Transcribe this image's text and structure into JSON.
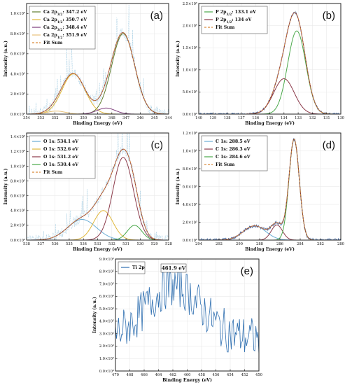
{
  "chart_data": [
    {
      "panel": "(a)",
      "type": "line",
      "xlabel": "Binding Energy (eV)",
      "ylabel": "Intensity (a.u.)",
      "xlim": [
        354,
        344
      ],
      "ylim": [
        0,
        1100000
      ],
      "x_ticks": [
        354,
        353,
        352,
        351,
        350,
        349,
        348,
        347,
        346,
        345,
        344
      ],
      "y_ticks": [
        0,
        200000,
        400000,
        600000,
        800000,
        1000000
      ],
      "y_tick_labels": [
        "0.0×10⁰",
        "2.0×10⁵",
        "4.0×10⁵",
        "6.0×10⁵",
        "8.0×10⁵",
        "1.0×10⁶"
      ],
      "legend": [
        {
          "text": "Ca 2p3/2: 347.2 eV",
          "color": "#5f7d2e",
          "style": "solid"
        },
        {
          "text": "Ca 2p1/2: 350.7 eV",
          "color": "#e0b73a",
          "style": "solid"
        },
        {
          "text": "Ca 2p3/2: 348.4 eV",
          "color": "#7d3a7a",
          "style": "solid"
        },
        {
          "text": "Ca 2p1/2: 351.9 eV",
          "color": "#e8c27a",
          "style": "solid"
        },
        {
          "text": "Fit Sum",
          "color": "#d98a3a",
          "style": "dashed"
        }
      ],
      "peaks": [
        {
          "center": 347.2,
          "height": 800000,
          "fwhm": 1.9,
          "color": "#5f7d2e"
        },
        {
          "center": 350.7,
          "height": 400000,
          "fwhm": 1.9,
          "color": "#e0b73a"
        },
        {
          "center": 348.4,
          "height": 60000,
          "fwhm": 1.5,
          "color": "#7d3a7a"
        },
        {
          "center": 351.9,
          "height": 30000,
          "fwhm": 1.5,
          "color": "#e8c27a"
        }
      ],
      "raw": {
        "color": "#9ecae1",
        "noise": 0.05,
        "spikes": true
      },
      "fit_color": "#8b3a3a"
    },
    {
      "panel": "(b)",
      "type": "line",
      "xlabel": "Binding Energy (eV)",
      "ylabel": "Intensity (a.u.)",
      "xlim": [
        140,
        130
      ],
      "ylim": [
        0,
        2500000
      ],
      "x_ticks": [
        140,
        139,
        138,
        137,
        136,
        135,
        134,
        133,
        132,
        131,
        130
      ],
      "y_ticks": [
        0,
        500000,
        1000000,
        1500000,
        2000000,
        2500000
      ],
      "y_tick_labels": [
        "0.0×10⁰",
        "5.0×10⁵",
        "1.0×10⁶",
        "1.5×10⁶",
        "2.0×10⁶",
        "2.5×10⁶"
      ],
      "legend": [
        {
          "text": "P 2p3/2: 133.1 eV",
          "color": "#4aa84a",
          "style": "solid"
        },
        {
          "text": "P 2p1/2: 134 eV",
          "color": "#8b3a4a",
          "style": "solid"
        },
        {
          "text": "Fit Sum",
          "color": "#d98a3a",
          "style": "dashed"
        }
      ],
      "peaks": [
        {
          "center": 133.1,
          "height": 1880000,
          "fwhm": 1.5,
          "color": "#4aa84a"
        },
        {
          "center": 134.0,
          "height": 800000,
          "fwhm": 1.7,
          "color": "#8b3a4a"
        }
      ],
      "raw": {
        "color": "#4a6fa5",
        "noise": 0.01,
        "spikes": false
      },
      "fit_color": "#8b3a3a"
    },
    {
      "panel": "(c)",
      "type": "line",
      "xlabel": "Binding Energy (eV)",
      "ylabel": "Intensity (a.u.)",
      "xlim": [
        538,
        528
      ],
      "ylim": [
        0,
        1450000
      ],
      "x_ticks": [
        538,
        537,
        536,
        535,
        534,
        533,
        532,
        531,
        530,
        529,
        528
      ],
      "y_ticks": [
        0,
        200000,
        400000,
        600000,
        800000,
        1000000,
        1200000,
        1400000
      ],
      "y_tick_labels": [
        "0.0×10⁰",
        "2.0×10⁵",
        "4.0×10⁵",
        "6.0×10⁵",
        "8.0×10⁵",
        "1.0×10⁶",
        "1.2×10⁶",
        "1.4×10⁶"
      ],
      "legend": [
        {
          "text": "O 1s: 534.1 eV",
          "color": "#6baed6",
          "style": "solid"
        },
        {
          "text": "O 1s: 532.6 eV",
          "color": "#e0b73a",
          "style": "solid"
        },
        {
          "text": "O 1s: 531.2 eV",
          "color": "#8b3a4a",
          "style": "solid"
        },
        {
          "text": "O 1s: 530.4 eV",
          "color": "#4aa84a",
          "style": "solid"
        },
        {
          "text": "Fit Sum",
          "color": "#d98a3a",
          "style": "dashed"
        }
      ],
      "peaks": [
        {
          "center": 534.1,
          "height": 280000,
          "fwhm": 2.4,
          "color": "#6baed6"
        },
        {
          "center": 532.6,
          "height": 400000,
          "fwhm": 1.6,
          "color": "#e0b73a"
        },
        {
          "center": 531.2,
          "height": 1120000,
          "fwhm": 1.7,
          "color": "#8b3a4a"
        },
        {
          "center": 530.4,
          "height": 200000,
          "fwhm": 1.2,
          "color": "#4aa84a"
        }
      ],
      "raw": {
        "color": "#9ecae1",
        "noise": 0.05,
        "spikes": true
      },
      "fit_color": "#8b3a3a"
    },
    {
      "panel": "(d)",
      "type": "line",
      "xlabel": "Binding Energy (eV)",
      "ylabel": "Intensity (a.u.)",
      "xlim": [
        294,
        280
      ],
      "ylim": [
        0,
        1200000
      ],
      "x_ticks": [
        294,
        292,
        290,
        288,
        286,
        284,
        282,
        280
      ],
      "y_ticks": [
        0,
        200000,
        400000,
        600000,
        800000,
        1000000,
        1200000
      ],
      "y_tick_labels": [
        "0.0×10⁰",
        "2.0×10⁵",
        "4.0×10⁵",
        "6.0×10⁵",
        "8.0×10⁵",
        "1.0×10⁶",
        "1.2×10⁶"
      ],
      "legend": [
        {
          "text": "C 1s: 288.5 eV",
          "color": "#6baed6",
          "style": "solid"
        },
        {
          "text": "C 1s: 286.3 eV",
          "color": "#8b3a4a",
          "style": "solid"
        },
        {
          "text": "C 1s: 284.6 eV",
          "color": "#4aa84a",
          "style": "solid"
        },
        {
          "text": "Fit Sum",
          "color": "#d98a3a",
          "style": "dashed"
        }
      ],
      "peaks": [
        {
          "center": 288.5,
          "height": 160000,
          "fwhm": 2.6,
          "color": "#6baed6"
        },
        {
          "center": 286.3,
          "height": 170000,
          "fwhm": 1.3,
          "color": "#8b3a4a"
        },
        {
          "center": 284.6,
          "height": 1130000,
          "fwhm": 1.2,
          "color": "#4aa84a"
        }
      ],
      "raw": {
        "color": "#4a6fa5",
        "noise": 0.015,
        "spikes": false
      },
      "fit_color": "#8b3a3a"
    },
    {
      "panel": "(e)",
      "type": "line",
      "xlabel": "Binding Energy (eV)",
      "ylabel": "Intensity (a.u.)",
      "xlim": [
        470,
        450
      ],
      "ylim": [
        0,
        900
      ],
      "x_ticks": [
        470,
        468,
        466,
        464,
        462,
        460,
        458,
        456,
        454,
        452,
        450
      ],
      "y_ticks": [
        0,
        100,
        200,
        300,
        400,
        500,
        600,
        700,
        800,
        900
      ],
      "y_tick_labels": [
        "0.0×10⁰",
        "1.0×10²",
        "2.0×10²",
        "3.0×10²",
        "4.0×10²",
        "5.0×10²",
        "6.0×10²",
        "7.0×10²",
        "8.0×10²",
        "9.0×10²"
      ],
      "legend": [
        {
          "text": "Ti 2p",
          "color": "#2f6fb0",
          "style": "solid"
        }
      ],
      "annotation": "461.9 eV",
      "annotation_x": 461.9,
      "peaks": [],
      "raw": {
        "color": "#2f6fb0",
        "noise": 0.0,
        "spikes": false,
        "baseline": 260,
        "bump_center": 461.9,
        "bump_height": 420,
        "bump_fwhm": 9,
        "jitter": 170
      },
      "fit_color": ""
    }
  ]
}
